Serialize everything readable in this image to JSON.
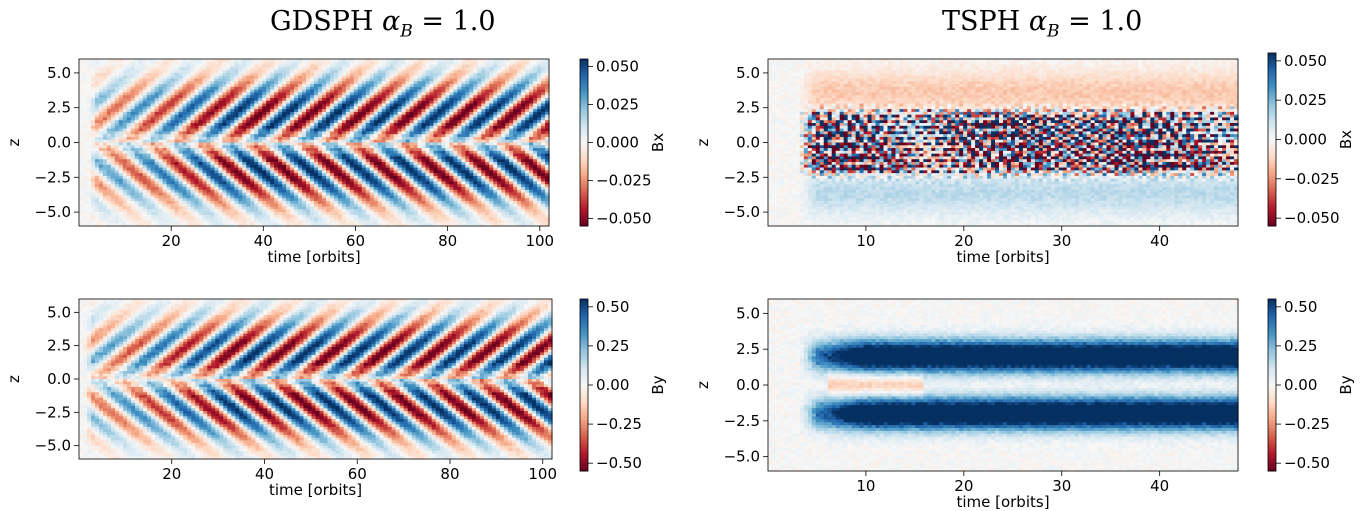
{
  "titles": {
    "left": {
      "prefix": "GDSPH",
      "alpha": "α",
      "sub": "B",
      "suffix": "= 1.0"
    },
    "right": {
      "prefix": "TSPH",
      "alpha": "α",
      "sub": "B",
      "suffix": "= 1.0"
    }
  },
  "colormap": {
    "name": "RdBu",
    "low": "#67001f",
    "mid": "#f7f7f7",
    "high": "#053061"
  },
  "chart_data": [
    {
      "type": "heatmap",
      "panel": "gdsph-bx",
      "xlabel": "time [orbits]",
      "ylabel": "z",
      "colorbar_label": "Bx",
      "xlim": [
        0,
        102
      ],
      "ylim": [
        -6,
        6
      ],
      "clim": [
        -0.055,
        0.055
      ],
      "xticks": [
        20,
        40,
        60,
        80,
        100
      ],
      "yticks": [
        -5.0,
        -2.5,
        0.0,
        2.5,
        5.0
      ],
      "cbar_ticks": [
        -0.05,
        -0.025,
        0.0,
        0.025,
        0.05
      ],
      "xtick_labels": [
        "20",
        "40",
        "60",
        "80",
        "100"
      ],
      "ytick_labels": [
        "−5.0",
        "−2.5",
        "0.0",
        "2.5",
        "5.0"
      ],
      "cbar_tick_labels": [
        "−0.050",
        "−0.025",
        "0.000",
        "0.025",
        "0.050"
      ],
      "pattern": "butterfly",
      "onset": 2,
      "cycle_period": 11,
      "field_sign": 1,
      "contrast": 1.0
    },
    {
      "type": "heatmap",
      "panel": "tsph-bx",
      "xlabel": "time [orbits]",
      "ylabel": "z",
      "colorbar_label": "Bx",
      "xlim": [
        0,
        48
      ],
      "ylim": [
        -6,
        6
      ],
      "clim": [
        -0.055,
        0.055
      ],
      "xticks": [
        10,
        20,
        30,
        40
      ],
      "yticks": [
        -5.0,
        -2.5,
        0.0,
        2.5,
        5.0
      ],
      "cbar_ticks": [
        -0.05,
        -0.025,
        0.0,
        0.025,
        0.05
      ],
      "xtick_labels": [
        "10",
        "20",
        "30",
        "40"
      ],
      "ytick_labels": [
        "−5.0",
        "−2.5",
        "0.0",
        "2.5",
        "5.0"
      ],
      "cbar_tick_labels": [
        "−0.050",
        "−0.025",
        "0.000",
        "0.025",
        "0.050"
      ],
      "pattern": "turbulent-core",
      "onset": 3,
      "cycle_period": 9,
      "field_sign": 1,
      "contrast": 1.6
    },
    {
      "type": "heatmap",
      "panel": "gdsph-by",
      "xlabel": "time [orbits]",
      "ylabel": "z",
      "colorbar_label": "By",
      "xlim": [
        0,
        102
      ],
      "ylim": [
        -6,
        6
      ],
      "clim": [
        -0.55,
        0.55
      ],
      "xticks": [
        20,
        40,
        60,
        80,
        100
      ],
      "yticks": [
        -5.0,
        -2.5,
        0.0,
        2.5,
        5.0
      ],
      "cbar_ticks": [
        -0.5,
        -0.25,
        0.0,
        0.25,
        0.5
      ],
      "xtick_labels": [
        "20",
        "40",
        "60",
        "80",
        "100"
      ],
      "ytick_labels": [
        "−5.0",
        "−2.5",
        "0.0",
        "2.5",
        "5.0"
      ],
      "cbar_tick_labels": [
        "−0.50",
        "−0.25",
        "0.00",
        "0.25",
        "0.50"
      ],
      "pattern": "butterfly",
      "onset": 1,
      "cycle_period": 11,
      "field_sign": -1,
      "contrast": 1.0
    },
    {
      "type": "heatmap",
      "panel": "tsph-by",
      "xlabel": "time [orbits]",
      "ylabel": "z",
      "colorbar_label": "By",
      "xlim": [
        0,
        48
      ],
      "ylim": [
        -6,
        6
      ],
      "clim": [
        -0.55,
        0.55
      ],
      "xticks": [
        10,
        20,
        30,
        40
      ],
      "yticks": [
        -5.0,
        -2.5,
        0.0,
        2.5,
        5.0
      ],
      "cbar_ticks": [
        -0.5,
        -0.25,
        0.0,
        0.25,
        0.5
      ],
      "xtick_labels": [
        "10",
        "20",
        "30",
        "40"
      ],
      "ytick_labels": [
        "−5.0",
        "−2.5",
        "0.0",
        "2.5",
        "5.0"
      ],
      "cbar_tick_labels": [
        "−0.50",
        "−0.25",
        "0.00",
        "0.25",
        "0.50"
      ],
      "pattern": "saturated-bands",
      "onset": 3,
      "cycle_period": 0,
      "field_sign": 1,
      "contrast": 1.0
    }
  ]
}
